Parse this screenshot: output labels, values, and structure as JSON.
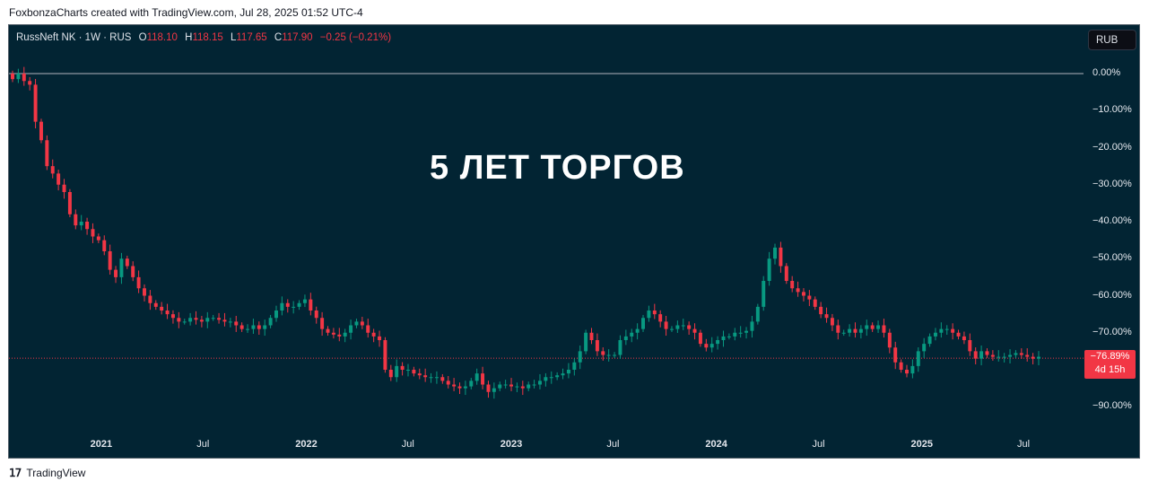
{
  "header": {
    "caption": "FoxbonzaCharts created with TradingView.com, Jul 28, 2025 01:52 UTC-4"
  },
  "legend": {
    "symbol": "RussNeft NK · 1W · RUS",
    "o_label": "O",
    "o_value": "118.10",
    "h_label": "H",
    "h_value": "118.15",
    "l_label": "L",
    "l_value": "117.65",
    "c_label": "C",
    "c_value": "117.90",
    "change": "−0.25 (−0.21%)"
  },
  "toolbar": {
    "currency": "RUB"
  },
  "headline": "5 ЛЕТ ТОРГОВ",
  "price_tag": {
    "value": "−76.89%",
    "countdown": "4d 15h"
  },
  "footer": {
    "brand": "TradingView",
    "logo_glyph": "𝟣𝟩"
  },
  "colors": {
    "background": "#022433",
    "up": "#089981",
    "down": "#f23645",
    "zero_line": "#b2b5be",
    "price_line": "#f23645"
  },
  "chart_data": {
    "type": "candlestick",
    "scale": "percent",
    "title": "5 ЛЕТ ТОРГОВ",
    "ylabel": "",
    "xlabel": "",
    "grid": false,
    "ylim": [
      -93,
      3
    ],
    "yticks": [
      "0.00%",
      "−10.00%",
      "−20.00%",
      "−30.00%",
      "−40.00%",
      "−50.00%",
      "−60.00%",
      "−70.00%",
      "−90.00%"
    ],
    "ytick_values": [
      0,
      -10,
      -20,
      -30,
      -40,
      -50,
      -60,
      -70,
      -90
    ],
    "xticks": [
      "2021",
      "Jul",
      "2022",
      "Jul",
      "2023",
      "Jul",
      "2024",
      "Jul",
      "2025",
      "Jul"
    ],
    "xtick_bold": [
      true,
      false,
      true,
      false,
      true,
      false,
      true,
      false,
      true,
      false
    ],
    "xtick_dates": [
      "2021-01-01",
      "2021-07-01",
      "2022-01-01",
      "2022-07-01",
      "2023-01-01",
      "2023-07-01",
      "2024-01-01",
      "2024-07-01",
      "2025-01-01",
      "2025-07-01"
    ],
    "first_bar": "2020-07-27",
    "last_bar": "2025-07-28",
    "last_value": -76.89,
    "series_close": [
      [
        -1.5,
        0,
        -2,
        -3,
        -13,
        -18,
        -25,
        -27,
        -30,
        -32,
        -38,
        -41,
        -40,
        -42,
        -44,
        -45,
        -48,
        -53,
        -55,
        -50,
        -52,
        -55,
        -58,
        -60,
        -62,
        -63,
        -64,
        -65,
        -66,
        -67,
        -67,
        -66,
        -66.5,
        -67,
        -66,
        -66,
        -66.5,
        -67,
        -67,
        -68,
        -69,
        -69,
        -68,
        -69,
        -68,
        -66,
        -64,
        -62,
        -63,
        -63,
        -62,
        -61,
        -64,
        -66,
        -69,
        -70,
        -70.5,
        -71,
        -70,
        -68,
        -67,
        -68,
        -70,
        -71,
        -72,
        -80,
        -82,
        -79,
        -80,
        -80,
        -81,
        -81.5,
        -82,
        -82,
        -82,
        -83,
        -84,
        -84.5,
        -85,
        -84.5,
        -83,
        -81,
        -84,
        -86,
        -85,
        -84,
        -84,
        -84.5,
        -84.5,
        -85,
        -84,
        -84,
        -83,
        -82,
        -82,
        -81.5,
        -81,
        -80,
        -78,
        -75,
        -70,
        -72,
        -75,
        -76,
        -76,
        -76,
        -72,
        -71,
        -70,
        -69,
        -66,
        -64,
        -65,
        -67,
        -69,
        -69,
        -68,
        -68,
        -69,
        -70,
        -73,
        -74,
        -73,
        -72,
        -71,
        -71,
        -70,
        -70,
        -69.5,
        -67,
        -63,
        -56,
        -50,
        -47,
        -52,
        -56,
        -58,
        -59,
        -60,
        -61,
        -63,
        -65,
        -66,
        -68,
        -70,
        -70,
        -69,
        -70,
        -69,
        -68,
        -69,
        -68,
        -70,
        -74,
        -78,
        -80,
        -81,
        -79,
        -75,
        -73,
        -71,
        -70,
        -69,
        -69,
        -70,
        -71,
        -72,
        -75,
        -77,
        -75,
        -76,
        -76.5,
        -76.5,
        -76.5,
        -76,
        -75.5,
        -76,
        -76.5,
        -77,
        -76.5
      ]
    ],
    "series_note": ""
  }
}
